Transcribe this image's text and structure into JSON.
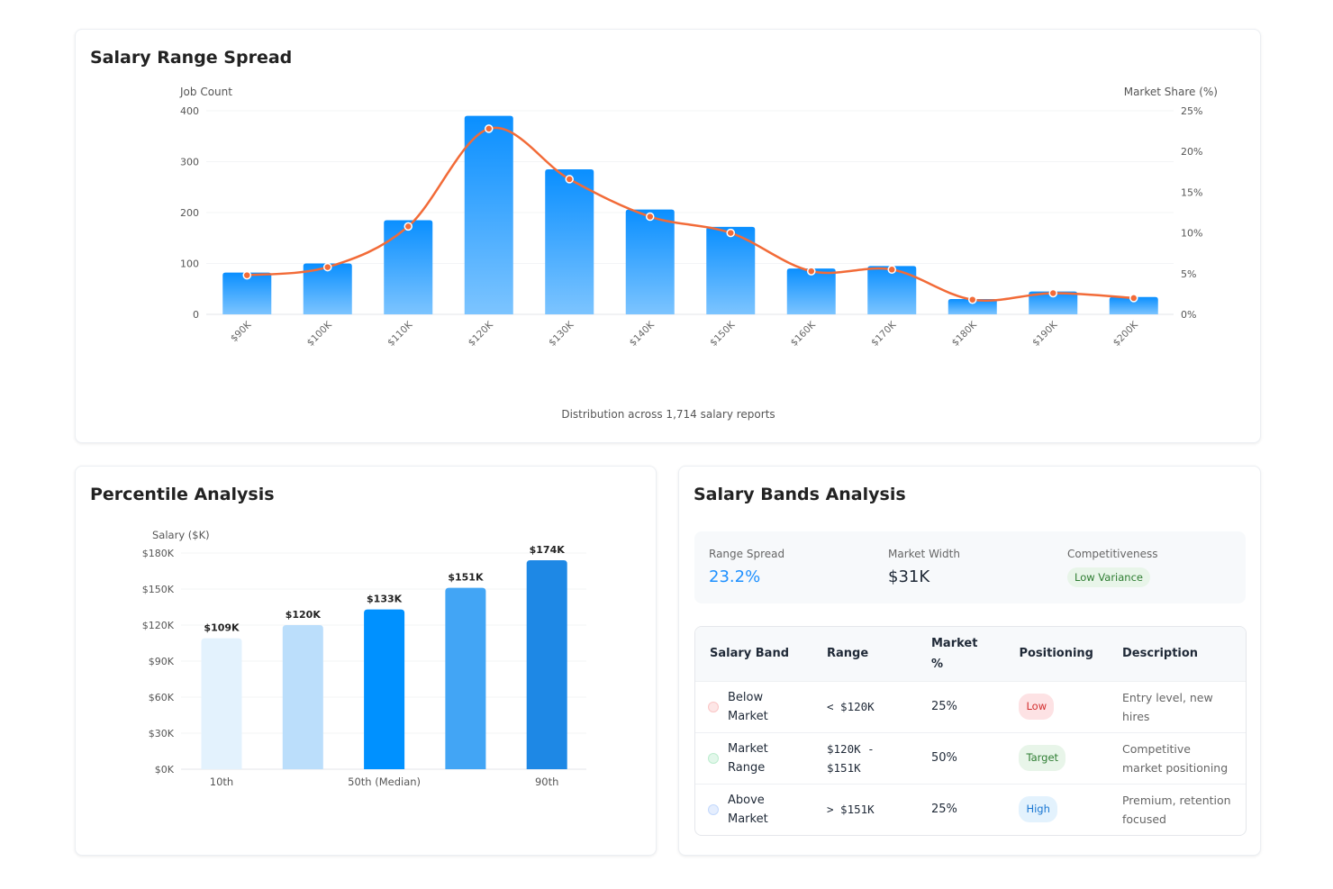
{
  "spread": {
    "title": "Salary Range Spread",
    "footer": "Distribution across 1,714 salary reports"
  },
  "percentile": {
    "title": "Percentile Analysis"
  },
  "bands": {
    "title": "Salary Bands Analysis",
    "stats": [
      {
        "label": "Range Spread",
        "value": "23.2%"
      },
      {
        "label": "Market Width",
        "value": "$31K"
      },
      {
        "label": "Competitiveness",
        "value": "Low Variance"
      }
    ],
    "headers": [
      "Salary Band",
      "Range",
      "Market %",
      "Positioning",
      "Description"
    ],
    "rows": [
      {
        "band": "Below Market",
        "range": "< $120K",
        "pct": "25%",
        "pos": "Low",
        "desc": "Entry level, new hires",
        "color": "#ef4444"
      },
      {
        "band": "Market Range",
        "range": "$120K - $151K",
        "pct": "50%",
        "pos": "Target",
        "desc": "Competitive market positioning",
        "color": "#22c55e"
      },
      {
        "band": "Above Market",
        "range": "> $151K",
        "pct": "25%",
        "pos": "High",
        "desc": "Premium, retention focused",
        "color": "#3b82f6"
      }
    ]
  },
  "chart_data": [
    {
      "type": "bar",
      "ylabel": "Job Count",
      "y2label": "Market Share (%)",
      "categories": [
        "$90K",
        "$100K",
        "$110K",
        "$120K",
        "$130K",
        "$140K",
        "$150K",
        "$160K",
        "$170K",
        "$180K",
        "$190K",
        "$200K"
      ],
      "ylim": [
        0,
        400
      ],
      "yticks": [
        0,
        100,
        200,
        300,
        400
      ],
      "y2lim": [
        0,
        25
      ],
      "y2ticks": [
        "0%",
        "5%",
        "10%",
        "15%",
        "20%",
        "25%"
      ],
      "series": [
        {
          "type": "bar",
          "axis": "left",
          "values": [
            82,
            100,
            185,
            390,
            285,
            206,
            172,
            90,
            95,
            30,
            45,
            34
          ],
          "color": "#0a8fff"
        },
        {
          "type": "line",
          "axis": "right",
          "values": [
            4.8,
            5.8,
            10.8,
            22.8,
            16.6,
            12.0,
            10.0,
            5.3,
            5.5,
            1.8,
            2.6,
            2.0
          ],
          "color": "#f26b38"
        }
      ],
      "grid": true
    },
    {
      "type": "bar",
      "ylabel": "Salary ($K)",
      "ylim": [
        0,
        180
      ],
      "yticks": [
        "$0K",
        "$30K",
        "$60K",
        "$90K",
        "$120K",
        "$150K",
        "$180K"
      ],
      "xticks": [
        "10th",
        "",
        "50th (Median)",
        "",
        "90th"
      ],
      "values": [
        109,
        120,
        133,
        151,
        174
      ],
      "data_labels": [
        "$109K",
        "$120K",
        "$133K",
        "$151K",
        "$174K"
      ],
      "colors": [
        "#e3f2fd",
        "#bbdefb",
        "#0091ff",
        "#42a5f5",
        "#1e88e5"
      ],
      "grid": true
    }
  ]
}
